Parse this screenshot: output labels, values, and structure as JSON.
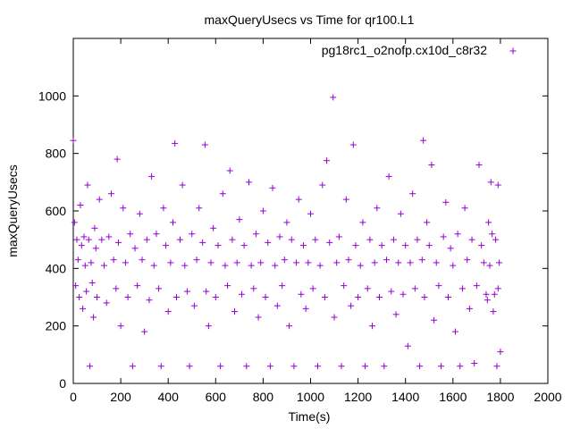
{
  "chart_data": {
    "type": "scatter",
    "title": "maxQueryUsecs vs Time for qr100.L1",
    "xlabel": "Time(s)",
    "ylabel": "maxQueryUsecs",
    "xlim": [
      0,
      2000
    ],
    "ylim": [
      0,
      1200
    ],
    "xticks": [
      0,
      200,
      400,
      600,
      800,
      1000,
      1200,
      1400,
      1600,
      1800,
      2000
    ],
    "yticks": [
      0,
      200,
      400,
      600,
      800,
      1000
    ],
    "grid": false,
    "legend_position": "top-right",
    "marker_color": "#9400d3",
    "series": [
      {
        "name": "pg18rc1_o2nofp.cx10d_c8r32",
        "points": [
          [
            0,
            845
          ],
          [
            5,
            560
          ],
          [
            10,
            340
          ],
          [
            15,
            500
          ],
          [
            20,
            430
          ],
          [
            25,
            300
          ],
          [
            30,
            620
          ],
          [
            35,
            480
          ],
          [
            40,
            260
          ],
          [
            45,
            510
          ],
          [
            50,
            410
          ],
          [
            55,
            320
          ],
          [
            60,
            690
          ],
          [
            65,
            500
          ],
          [
            70,
            60
          ],
          [
            75,
            420
          ],
          [
            80,
            350
          ],
          [
            85,
            230
          ],
          [
            90,
            540
          ],
          [
            95,
            470
          ],
          [
            100,
            300
          ],
          [
            110,
            640
          ],
          [
            120,
            500
          ],
          [
            130,
            410
          ],
          [
            140,
            280
          ],
          [
            150,
            510
          ],
          [
            160,
            660
          ],
          [
            170,
            430
          ],
          [
            180,
            330
          ],
          [
            185,
            780
          ],
          [
            190,
            490
          ],
          [
            200,
            200
          ],
          [
            210,
            610
          ],
          [
            220,
            420
          ],
          [
            230,
            300
          ],
          [
            240,
            520
          ],
          [
            250,
            60
          ],
          [
            260,
            470
          ],
          [
            270,
            340
          ],
          [
            280,
            590
          ],
          [
            290,
            430
          ],
          [
            300,
            180
          ],
          [
            310,
            500
          ],
          [
            320,
            290
          ],
          [
            330,
            720
          ],
          [
            340,
            410
          ],
          [
            350,
            520
          ],
          [
            360,
            330
          ],
          [
            370,
            60
          ],
          [
            380,
            610
          ],
          [
            390,
            480
          ],
          [
            400,
            250
          ],
          [
            410,
            420
          ],
          [
            420,
            560
          ],
          [
            428,
            835
          ],
          [
            435,
            300
          ],
          [
            450,
            500
          ],
          [
            460,
            690
          ],
          [
            470,
            410
          ],
          [
            480,
            320
          ],
          [
            490,
            60
          ],
          [
            500,
            520
          ],
          [
            510,
            270
          ],
          [
            520,
            430
          ],
          [
            530,
            610
          ],
          [
            545,
            490
          ],
          [
            555,
            830
          ],
          [
            560,
            320
          ],
          [
            570,
            200
          ],
          [
            580,
            420
          ],
          [
            590,
            540
          ],
          [
            600,
            300
          ],
          [
            610,
            480
          ],
          [
            620,
            60
          ],
          [
            630,
            660
          ],
          [
            640,
            410
          ],
          [
            650,
            340
          ],
          [
            660,
            740
          ],
          [
            670,
            500
          ],
          [
            680,
            250
          ],
          [
            690,
            420
          ],
          [
            700,
            570
          ],
          [
            710,
            310
          ],
          [
            720,
            480
          ],
          [
            730,
            60
          ],
          [
            740,
            700
          ],
          [
            750,
            410
          ],
          [
            760,
            330
          ],
          [
            770,
            520
          ],
          [
            780,
            230
          ],
          [
            790,
            420
          ],
          [
            800,
            600
          ],
          [
            810,
            300
          ],
          [
            820,
            490
          ],
          [
            830,
            60
          ],
          [
            840,
            680
          ],
          [
            850,
            410
          ],
          [
            860,
            270
          ],
          [
            870,
            510
          ],
          [
            880,
            340
          ],
          [
            890,
            430
          ],
          [
            900,
            560
          ],
          [
            910,
            200
          ],
          [
            920,
            500
          ],
          [
            930,
            60
          ],
          [
            940,
            420
          ],
          [
            950,
            640
          ],
          [
            960,
            310
          ],
          [
            970,
            480
          ],
          [
            980,
            260
          ],
          [
            990,
            420
          ],
          [
            1000,
            590
          ],
          [
            1010,
            330
          ],
          [
            1020,
            500
          ],
          [
            1030,
            60
          ],
          [
            1040,
            410
          ],
          [
            1050,
            690
          ],
          [
            1060,
            300
          ],
          [
            1068,
            775
          ],
          [
            1080,
            490
          ],
          [
            1095,
            995
          ],
          [
            1100,
            230
          ],
          [
            1110,
            420
          ],
          [
            1120,
            510
          ],
          [
            1130,
            60
          ],
          [
            1140,
            340
          ],
          [
            1150,
            640
          ],
          [
            1160,
            430
          ],
          [
            1170,
            270
          ],
          [
            1180,
            830
          ],
          [
            1190,
            480
          ],
          [
            1200,
            300
          ],
          [
            1210,
            410
          ],
          [
            1220,
            560
          ],
          [
            1230,
            60
          ],
          [
            1240,
            330
          ],
          [
            1250,
            500
          ],
          [
            1260,
            200
          ],
          [
            1270,
            420
          ],
          [
            1280,
            610
          ],
          [
            1290,
            300
          ],
          [
            1300,
            480
          ],
          [
            1310,
            60
          ],
          [
            1320,
            430
          ],
          [
            1330,
            720
          ],
          [
            1340,
            320
          ],
          [
            1350,
            500
          ],
          [
            1360,
            240
          ],
          [
            1370,
            420
          ],
          [
            1380,
            590
          ],
          [
            1390,
            310
          ],
          [
            1400,
            480
          ],
          [
            1410,
            130
          ],
          [
            1420,
            420
          ],
          [
            1430,
            660
          ],
          [
            1440,
            330
          ],
          [
            1450,
            500
          ],
          [
            1460,
            60
          ],
          [
            1470,
            430
          ],
          [
            1475,
            845
          ],
          [
            1480,
            300
          ],
          [
            1490,
            560
          ],
          [
            1500,
            480
          ],
          [
            1510,
            760
          ],
          [
            1520,
            220
          ],
          [
            1530,
            420
          ],
          [
            1540,
            340
          ],
          [
            1550,
            60
          ],
          [
            1560,
            510
          ],
          [
            1570,
            630
          ],
          [
            1580,
            300
          ],
          [
            1590,
            470
          ],
          [
            1600,
            410
          ],
          [
            1610,
            180
          ],
          [
            1620,
            520
          ],
          [
            1630,
            60
          ],
          [
            1640,
            330
          ],
          [
            1650,
            610
          ],
          [
            1660,
            430
          ],
          [
            1670,
            260
          ],
          [
            1680,
            500
          ],
          [
            1690,
            70
          ],
          [
            1700,
            340
          ],
          [
            1710,
            760
          ],
          [
            1720,
            480
          ],
          [
            1730,
            420
          ],
          [
            1740,
            310
          ],
          [
            1750,
            560
          ],
          [
            1760,
            700
          ],
          [
            1770,
            250
          ],
          [
            1780,
            500
          ],
          [
            1790,
            330
          ],
          [
            1795,
            420
          ],
          [
            1800,
            110
          ],
          [
            1790,
            690
          ],
          [
            1785,
            60
          ],
          [
            1775,
            310
          ],
          [
            1765,
            520
          ],
          [
            1755,
            410
          ],
          [
            1745,
            290
          ]
        ]
      }
    ]
  }
}
